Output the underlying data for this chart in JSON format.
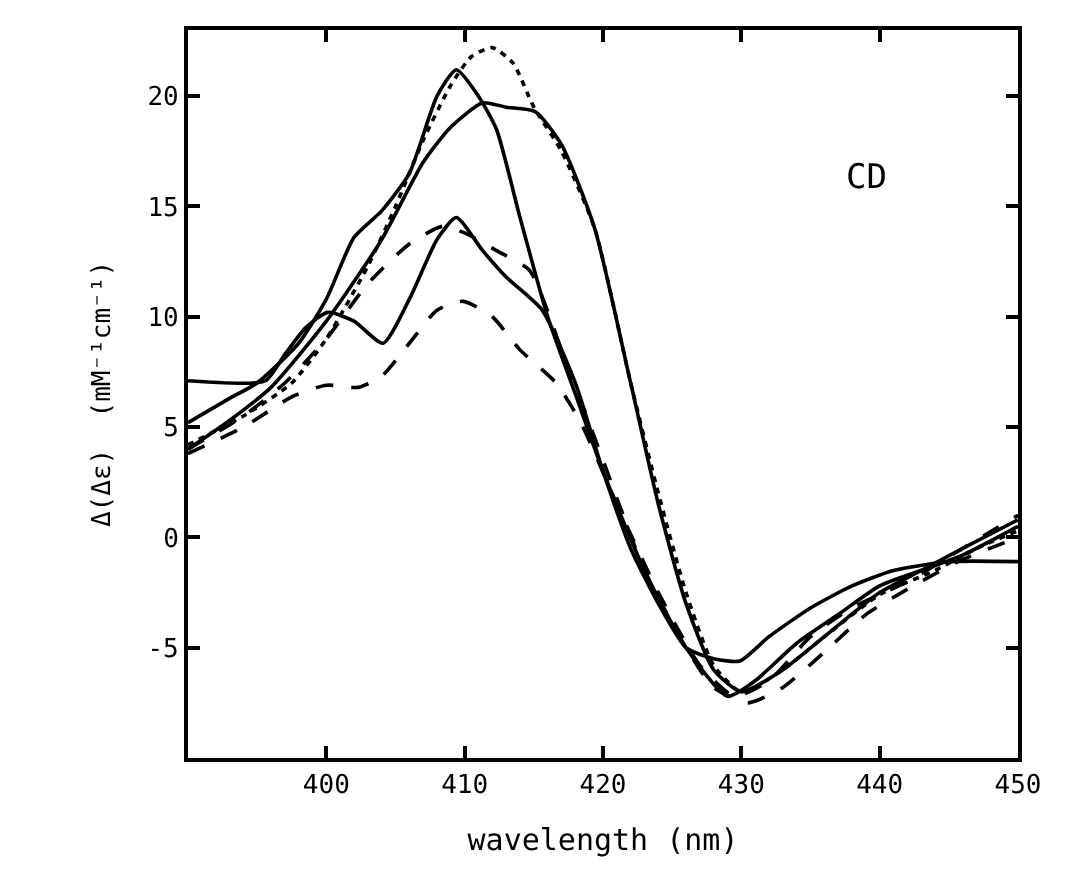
{
  "chart_data": {
    "type": "line",
    "xlabel": "wavelength (nm)",
    "ylabel": "Δ(Δε)  (mM⁻¹cm⁻¹)",
    "annotations": [
      "CD"
    ],
    "xlim": [
      390,
      450
    ],
    "xticks": [
      400,
      410,
      420,
      430,
      440,
      450
    ],
    "ylim": [
      -10,
      23
    ],
    "yticks": [
      -5,
      0,
      5,
      10,
      15,
      20
    ],
    "marker": "none",
    "series": [
      {
        "color": "#000000",
        "line_style": "solid",
        "x": [
          390,
          393,
          395,
          398,
          400,
          402,
          404,
          406,
          408,
          409.4,
          411,
          412.3,
          414,
          416,
          418,
          420,
          423,
          426,
          429,
          431,
          434,
          437,
          440,
          443,
          446,
          450
        ],
        "values": [
          5.2,
          6.3,
          7.0,
          8.8,
          10.8,
          13.6,
          14.8,
          16.5,
          20,
          21.2,
          20,
          18.5,
          14.5,
          10,
          6.5,
          3,
          -1.5,
          -5,
          -7.2,
          -6.5,
          -4.8,
          -3.5,
          -2.2,
          -1.5,
          -0.8,
          0.5
        ]
      },
      {
        "color": "#000000",
        "line_style": "solid",
        "x": [
          390,
          393,
          396,
          400,
          404,
          407,
          409,
          411.3,
          413,
          415.1,
          417,
          419.4,
          422,
          424,
          426,
          428,
          430,
          433,
          436,
          440,
          443,
          446,
          450
        ],
        "values": [
          4.0,
          5.3,
          6.8,
          9.8,
          13.5,
          17,
          18.6,
          19.7,
          19.5,
          19.3,
          17.8,
          14,
          7,
          1.5,
          -3,
          -6,
          -7,
          -6.0,
          -4.5,
          -2.5,
          -1.5,
          -0.5,
          0.8
        ]
      },
      {
        "color": "#000000",
        "line_style": "dotted",
        "x": [
          390,
          394,
          397.5,
          400,
          403,
          405,
          407,
          409,
          410.5,
          412,
          413.5,
          415,
          417,
          419.4,
          422,
          424,
          426,
          428,
          430,
          433,
          436,
          440,
          444,
          447,
          450
        ],
        "values": [
          4.2,
          5.5,
          7.0,
          9.0,
          12.3,
          15,
          18,
          20.5,
          21.8,
          22.2,
          21.5,
          19.5,
          17.5,
          14,
          7,
          2,
          -2.5,
          -5.8,
          -7.0,
          -6,
          -4.5,
          -2.6,
          -1.5,
          -0.5,
          0.3
        ]
      },
      {
        "color": "#000000",
        "line_style": "dashed",
        "x": [
          390,
          394,
          397,
          400,
          403,
          406,
          408.4,
          410,
          412.3,
          414.7,
          417,
          420,
          423,
          426,
          428,
          430.5,
          433,
          436,
          439,
          442.7,
          446,
          450
        ],
        "values": [
          4.0,
          5.5,
          7.0,
          9.0,
          11.5,
          13.3,
          14.1,
          13.8,
          13.0,
          12.1,
          8.5,
          3.5,
          -1.5,
          -5,
          -6.8,
          -7.5,
          -6.8,
          -5.2,
          -3.5,
          -2.1,
          -1.0,
          0.0
        ]
      },
      {
        "color": "#000000",
        "line_style": "solid",
        "x": [
          390,
          395.6,
          397,
          398.5,
          400.1,
          402,
          404.1,
          406,
          408,
          409.4,
          411.3,
          413,
          415.6,
          418,
          420,
          422,
          424,
          426,
          428,
          429.9,
          432,
          435,
          438,
          441,
          445,
          450
        ],
        "values": [
          7.1,
          7.1,
          8.3,
          9.5,
          10.2,
          9.8,
          8.8,
          10.8,
          13.5,
          14.5,
          13,
          11.8,
          10.3,
          7,
          3,
          -0.5,
          -3,
          -5,
          -5.5,
          -5.6,
          -4.5,
          -3.2,
          -2.2,
          -1.5,
          -1.1,
          -1.1
        ]
      },
      {
        "color": "#000000",
        "line_style": "dashed",
        "x": [
          390,
          394,
          397.6,
          400,
          402.3,
          404,
          406,
          408,
          409.9,
          412,
          414,
          416.6,
          418.4,
          421,
          424,
          427,
          429.5,
          432,
          435,
          438,
          442,
          446,
          450
        ],
        "values": [
          3.8,
          5.0,
          6.4,
          6.9,
          6.8,
          7.3,
          8.8,
          10.3,
          10.7,
          10,
          8.5,
          7.0,
          5.2,
          1.5,
          -2.5,
          -5.8,
          -7.2,
          -6.5,
          -4.5,
          -3.2,
          -2,
          -0.5,
          1.0
        ]
      }
    ]
  }
}
